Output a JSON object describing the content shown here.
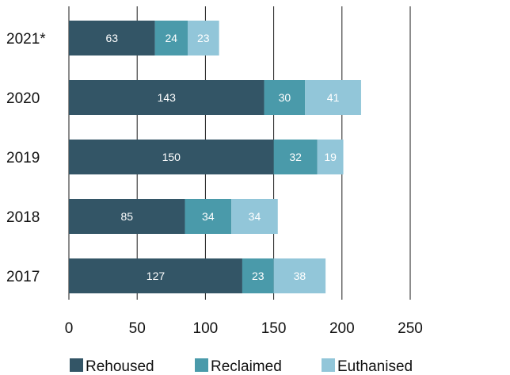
{
  "chart_data": {
    "type": "bar",
    "orientation": "horizontal",
    "stacked": true,
    "categories": [
      "2021*",
      "2020",
      "2019",
      "2018",
      "2017"
    ],
    "series": [
      {
        "name": "Rehoused",
        "values": [
          63,
          143,
          150,
          85,
          127
        ],
        "color": "#335566"
      },
      {
        "name": "Reclaimed",
        "values": [
          24,
          30,
          32,
          34,
          23
        ],
        "color": "#4a9aaa"
      },
      {
        "name": "Euthanised",
        "values": [
          23,
          41,
          19,
          34,
          38
        ],
        "color": "#92c6d9"
      }
    ],
    "xlim": [
      0,
      250
    ],
    "x_ticks": [
      0,
      50,
      100,
      150,
      200,
      250
    ],
    "grid": "vertical",
    "legend_position": "bottom",
    "title": "",
    "xlabel": "",
    "ylabel": ""
  }
}
